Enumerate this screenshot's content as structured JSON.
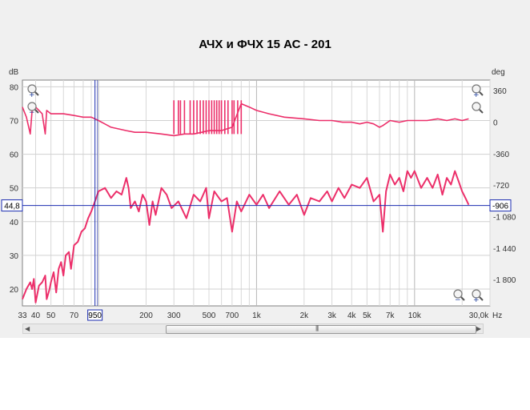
{
  "title": "АЧХ и ФЧХ 15 АС - 201",
  "chart_data": {
    "type": "line",
    "title": "АЧХ и ФЧХ 15 АС - 201",
    "x_scale": "log",
    "xlim": [
      33,
      30000
    ],
    "x_unit": "Hz",
    "x_last_label": "30,0k",
    "x_ticks": [
      {
        "v": 33,
        "label": "33"
      },
      {
        "v": 40,
        "label": "40"
      },
      {
        "v": 50,
        "label": "50"
      },
      {
        "v": 70,
        "label": "70"
      },
      {
        "v": 200,
        "label": "200"
      },
      {
        "v": 300,
        "label": "300"
      },
      {
        "v": 500,
        "label": "500"
      },
      {
        "v": 700,
        "label": "700"
      },
      {
        "v": 1000,
        "label": "1k"
      },
      {
        "v": 2000,
        "label": "2k"
      },
      {
        "v": 3000,
        "label": "3k"
      },
      {
        "v": 4000,
        "label": "4k"
      },
      {
        "v": 5000,
        "label": "5k"
      },
      {
        "v": 7000,
        "label": "7k"
      },
      {
        "v": 10000,
        "label": "10k"
      }
    ],
    "y_left_unit": "dB",
    "y_left_lim": [
      15,
      82
    ],
    "y_left_ticks": [
      20,
      30,
      40,
      50,
      60,
      70,
      80
    ],
    "y_right_unit": "deg",
    "y_right_lim": [
      -2100,
      480
    ],
    "y_right_ticks": [
      {
        "v": 360,
        "label": "360"
      },
      {
        "v": 0,
        "label": "0"
      },
      {
        "v": -360,
        "label": "-360"
      },
      {
        "v": -720,
        "label": "-720"
      },
      {
        "v": -1080,
        "label": "-1 080"
      },
      {
        "v": -1440,
        "label": "-1 440"
      },
      {
        "v": -1800,
        "label": "-1 800"
      }
    ],
    "grid": true,
    "cursor": {
      "x": 95,
      "x_label": "950",
      "y": 44.8,
      "y_label": "44,8",
      "y_right_label": "-906"
    },
    "series": [
      {
        "name": "",
        "axis": "left",
        "color": "#ec2f6a",
        "points": [
          [
            33,
            17
          ],
          [
            35,
            20
          ],
          [
            37,
            22
          ],
          [
            38,
            20
          ],
          [
            39,
            23
          ],
          [
            40,
            16
          ],
          [
            42,
            21
          ],
          [
            44,
            22
          ],
          [
            46,
            24
          ],
          [
            47,
            17
          ],
          [
            49,
            20
          ],
          [
            50,
            22
          ],
          [
            52,
            25
          ],
          [
            54,
            19
          ],
          [
            56,
            26
          ],
          [
            58,
            28
          ],
          [
            60,
            24
          ],
          [
            62,
            30
          ],
          [
            65,
            31
          ],
          [
            67,
            26
          ],
          [
            70,
            33
          ],
          [
            74,
            34
          ],
          [
            78,
            37
          ],
          [
            82,
            38
          ],
          [
            86,
            41
          ],
          [
            90,
            43
          ],
          [
            95,
            46
          ],
          [
            100,
            49
          ],
          [
            110,
            50
          ],
          [
            120,
            47
          ],
          [
            130,
            49
          ],
          [
            140,
            48
          ],
          [
            150,
            53
          ],
          [
            155,
            50
          ],
          [
            160,
            44
          ],
          [
            170,
            46
          ],
          [
            180,
            43
          ],
          [
            190,
            48
          ],
          [
            200,
            46
          ],
          [
            210,
            39
          ],
          [
            220,
            46
          ],
          [
            230,
            42
          ],
          [
            250,
            50
          ],
          [
            270,
            48
          ],
          [
            290,
            44
          ],
          [
            320,
            46
          ],
          [
            360,
            41
          ],
          [
            400,
            48
          ],
          [
            440,
            46
          ],
          [
            480,
            50
          ],
          [
            500,
            41
          ],
          [
            540,
            49
          ],
          [
            600,
            46
          ],
          [
            650,
            47
          ],
          [
            700,
            37
          ],
          [
            750,
            46
          ],
          [
            800,
            43
          ],
          [
            900,
            48
          ],
          [
            1000,
            45
          ],
          [
            1100,
            48
          ],
          [
            1200,
            44
          ],
          [
            1400,
            49
          ],
          [
            1600,
            45
          ],
          [
            1800,
            48
          ],
          [
            2000,
            42
          ],
          [
            2200,
            47
          ],
          [
            2500,
            46
          ],
          [
            2800,
            49
          ],
          [
            3000,
            46
          ],
          [
            3300,
            50
          ],
          [
            3600,
            47
          ],
          [
            4000,
            51
          ],
          [
            4500,
            50
          ],
          [
            5000,
            53
          ],
          [
            5500,
            46
          ],
          [
            6000,
            48
          ],
          [
            6300,
            37
          ],
          [
            6600,
            49
          ],
          [
            7000,
            54
          ],
          [
            7500,
            51
          ],
          [
            8000,
            53
          ],
          [
            8500,
            49
          ],
          [
            9000,
            55
          ],
          [
            9500,
            53
          ],
          [
            10000,
            55
          ],
          [
            11000,
            50
          ],
          [
            12000,
            53
          ],
          [
            13000,
            50
          ],
          [
            14000,
            54
          ],
          [
            15000,
            48
          ],
          [
            16000,
            53
          ],
          [
            17000,
            51
          ],
          [
            18000,
            55
          ],
          [
            19000,
            52
          ],
          [
            20000,
            49
          ],
          [
            21000,
            47
          ],
          [
            22000,
            45
          ]
        ]
      },
      {
        "name": "",
        "axis": "left",
        "color": "#ec2f6a",
        "points": [
          [
            33,
            74
          ],
          [
            35,
            71
          ],
          [
            37,
            66
          ],
          [
            38,
            73
          ],
          [
            40,
            74
          ],
          [
            42,
            73
          ],
          [
            44,
            72
          ],
          [
            46,
            66
          ],
          [
            47,
            73
          ],
          [
            50,
            72
          ],
          [
            55,
            72
          ],
          [
            60,
            72
          ],
          [
            70,
            71.5
          ],
          [
            80,
            71
          ],
          [
            90,
            71
          ],
          [
            100,
            70
          ],
          [
            120,
            68
          ],
          [
            150,
            67
          ],
          [
            170,
            66.5
          ],
          [
            200,
            66.5
          ],
          [
            250,
            66
          ],
          [
            300,
            65.5
          ],
          [
            350,
            66
          ],
          [
            400,
            66
          ],
          [
            450,
            66.5
          ],
          [
            500,
            67
          ],
          [
            600,
            67
          ],
          [
            700,
            68
          ],
          [
            800,
            75
          ],
          [
            900,
            74
          ],
          [
            1000,
            73
          ],
          [
            1200,
            72
          ],
          [
            1500,
            71
          ],
          [
            2000,
            70.5
          ],
          [
            2500,
            70
          ],
          [
            3000,
            70
          ],
          [
            3500,
            69.5
          ],
          [
            4000,
            69.5
          ],
          [
            4500,
            69
          ],
          [
            5000,
            69.5
          ],
          [
            5500,
            69
          ],
          [
            6000,
            68
          ],
          [
            6300,
            68.5
          ],
          [
            7000,
            70
          ],
          [
            8000,
            69.5
          ],
          [
            9000,
            70
          ],
          [
            10000,
            70
          ],
          [
            12000,
            70
          ],
          [
            14000,
            70.5
          ],
          [
            16000,
            70
          ],
          [
            18000,
            70.5
          ],
          [
            20000,
            70
          ],
          [
            22000,
            70.5
          ]
        ]
      }
    ],
    "phase_wrap_region": [
      300,
      800
    ]
  }
}
